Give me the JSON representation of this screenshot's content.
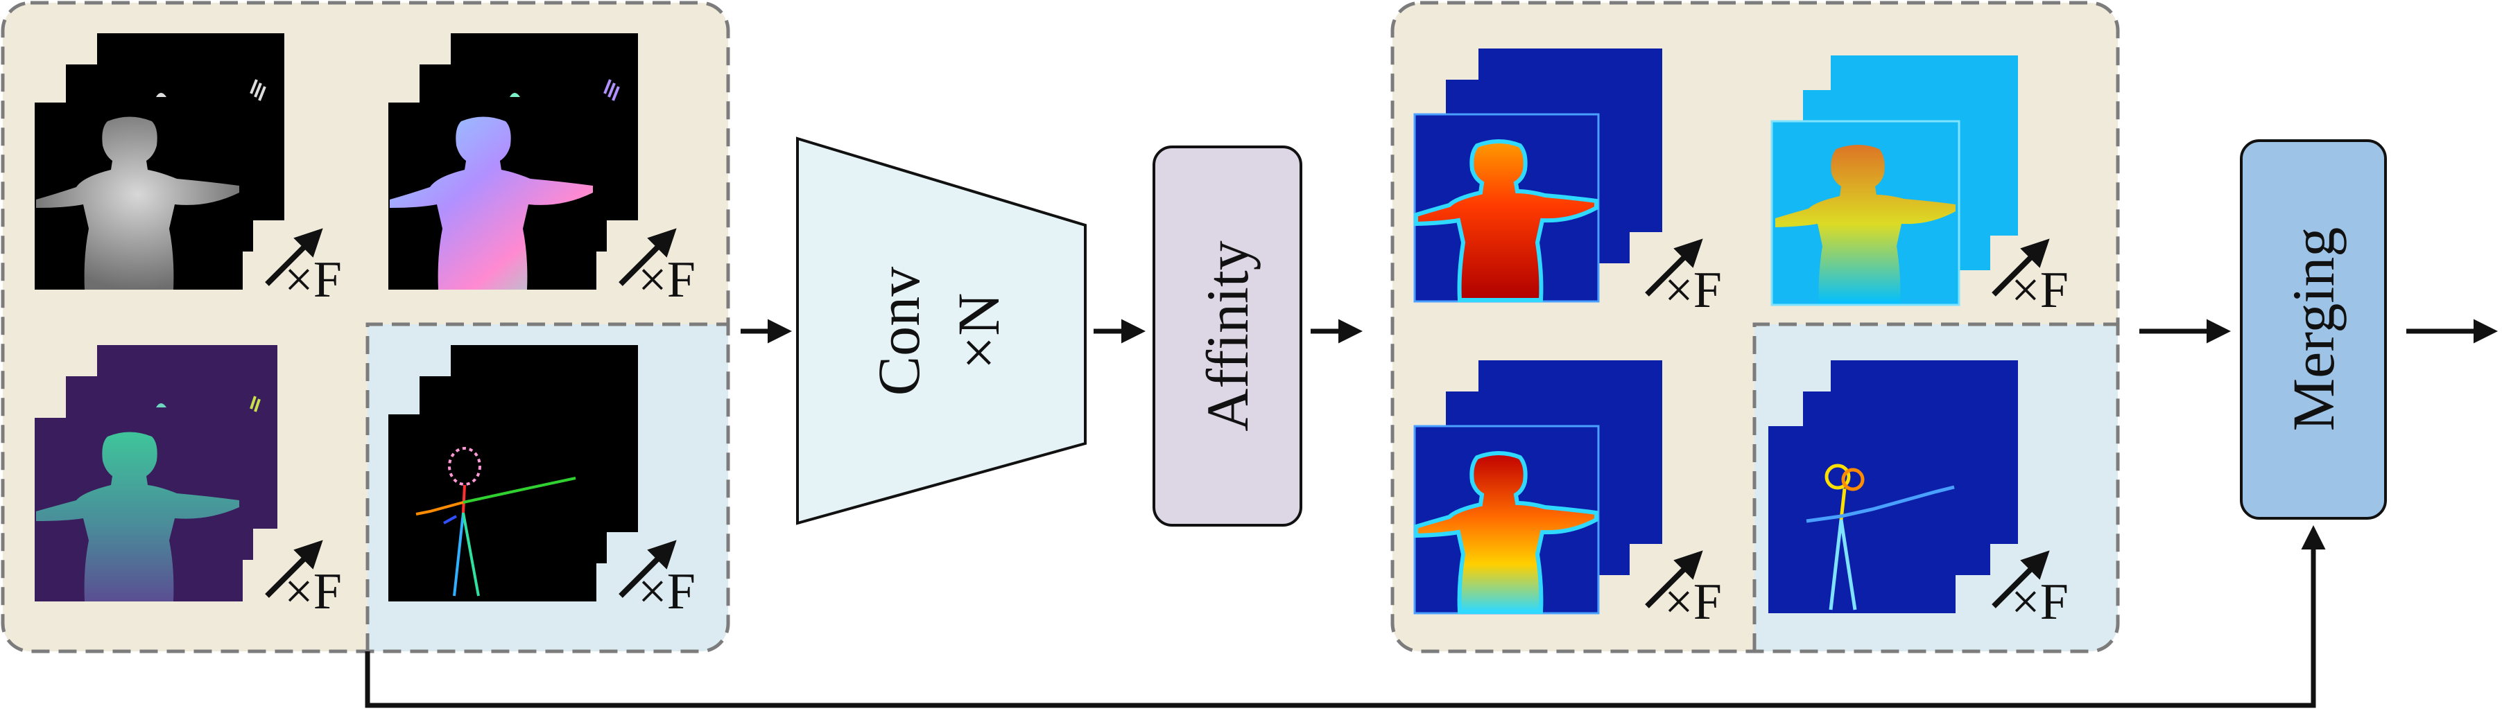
{
  "blocks": {
    "conv_line1": "Conv",
    "conv_line2": "×N",
    "affinity": "Affinity",
    "merging": "Merging"
  },
  "stack_label": "×F",
  "colors": {
    "group_fill": "#f0eadb",
    "highlight_fill": "#dcebf1",
    "dashed_border": "#7c7c7c",
    "conv_fill": "#e6f3f6",
    "affinity_fill": "#ddd6e4",
    "merging_fill": "#9dc3e6",
    "arrow": "#111111"
  }
}
